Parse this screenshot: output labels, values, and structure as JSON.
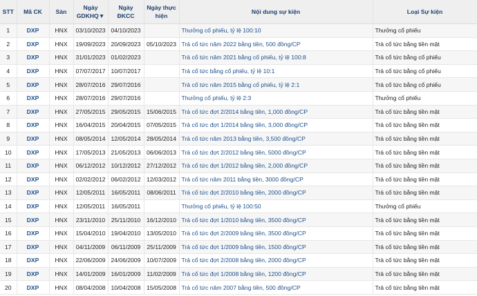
{
  "table": {
    "headers": {
      "stt": "STT",
      "ma_ck": "Mã CK",
      "san": "Sàn",
      "ngay_gdkhq": "Ngày GDKHQ▼",
      "ngay_dkcc": "Ngày ĐKCC",
      "ngay_thuc_hien": "Ngày thực hiện",
      "noi_dung": "Nội dung sự kiện",
      "loai": "Loại Sự kiện"
    },
    "rows": [
      [
        "1",
        "DXP",
        "HNX",
        "03/10/2023",
        "04/10/2023",
        "",
        "Thưởng cổ phiếu, tỷ lệ 100:10",
        "Thưởng cổ phiếu"
      ],
      [
        "2",
        "DXP",
        "HNX",
        "19/09/2023",
        "20/09/2023",
        "05/10/2023",
        "Trả cổ tức năm 2022 bằng tiền, 500 đồng/CP",
        "Trả cổ tức bằng tiền mặt"
      ],
      [
        "3",
        "DXP",
        "HNX",
        "31/01/2023",
        "01/02/2023",
        "",
        "Trả cổ tức năm 2021 bằng cổ phiếu, tỷ lệ 100:8",
        "Trả cổ tức bằng cổ phiếu"
      ],
      [
        "4",
        "DXP",
        "HNX",
        "07/07/2017",
        "10/07/2017",
        "",
        "Trả cổ tức bằng cổ phiếu, tỷ lệ 10:1",
        "Trả cổ tức bằng cổ phiếu"
      ],
      [
        "5",
        "DXP",
        "HNX",
        "28/07/2016",
        "29/07/2016",
        "",
        "Trả cổ tức năm 2015 bằng cổ phiếu, tỷ lệ 2:1",
        "Trả cổ tức bằng cổ phiếu"
      ],
      [
        "6",
        "DXP",
        "HNX",
        "28/07/2016",
        "29/07/2016",
        "",
        "Thưởng cổ phiếu, tỷ lệ 2:3",
        "Thưởng cổ phiếu"
      ],
      [
        "7",
        "DXP",
        "HNX",
        "27/05/2015",
        "29/05/2015",
        "15/06/2015",
        "Trả cổ tức đợt 2/2014 bằng tiền, 1,000 đồng/CP",
        "Trả cổ tức bằng tiền mặt"
      ],
      [
        "8",
        "DXP",
        "HNX",
        "16/04/2015",
        "20/04/2015",
        "07/05/2015",
        "Trả cổ tức đợt 1/2014 bằng tiền, 3,000 đồng/CP",
        "Trả cổ tức bằng tiền mặt"
      ],
      [
        "9",
        "DXP",
        "HNX",
        "08/05/2014",
        "12/05/2014",
        "28/05/2014",
        "Trả cổ tức năm 2013 bằng tiền, 3,500 đồng/CP",
        "Trả cổ tức bằng tiền mặt"
      ],
      [
        "10",
        "DXP",
        "HNX",
        "17/05/2013",
        "21/05/2013",
        "06/06/2013",
        "Trả cổ tức đợt 2/2012 bằng tiền, 5000 đồng/CP",
        "Trả cổ tức bằng tiền mặt"
      ],
      [
        "11",
        "DXP",
        "HNX",
        "06/12/2012",
        "10/12/2012",
        "27/12/2012",
        "Trả cổ tức đợt 1/2012 bằng tiền, 2,000 đồng/CP",
        "Trả cổ tức bằng tiền mặt"
      ],
      [
        "12",
        "DXP",
        "HNX",
        "02/02/2012",
        "06/02/2012",
        "12/03/2012",
        "Trả cổ tức năm 2011 bằng tiền, 3000 đồng/CP",
        "Trả cổ tức bằng tiền mặt"
      ],
      [
        "13",
        "DXP",
        "HNX",
        "12/05/2011",
        "16/05/2011",
        "08/06/2011",
        "Trả cổ tức đợt 2/2010 bằng tiền, 2000 đồng/CP",
        "Trả cổ tức bằng tiền mặt"
      ],
      [
        "14",
        "DXP",
        "HNX",
        "12/05/2011",
        "16/05/2011",
        "",
        "Thưởng cổ phiếu, tỷ lệ 100:50",
        "Thưởng cổ phiếu"
      ],
      [
        "15",
        "DXP",
        "HNX",
        "23/11/2010",
        "25/11/2010",
        "16/12/2010",
        "Trả cổ tức đợt 1/2010 bằng tiền, 3500 đồng/CP",
        "Trả cổ tức bằng tiền mặt"
      ],
      [
        "16",
        "DXP",
        "HNX",
        "15/04/2010",
        "19/04/2010",
        "13/05/2010",
        "Trả cổ tức đợt 2/2009 bằng tiền, 3500 đồng/CP",
        "Trả cổ tức bằng tiền mặt"
      ],
      [
        "17",
        "DXP",
        "HNX",
        "04/11/2009",
        "06/11/2009",
        "25/11/2009",
        "Trả cổ tức đợt 1/2009 bằng tiền, 1500 đồng/CP",
        "Trả cổ tức bằng tiền mặt"
      ],
      [
        "18",
        "DXP",
        "HNX",
        "22/06/2009",
        "24/06/2009",
        "10/07/2009",
        "Trả cổ tức đợt 2/2008 bằng tiền, 2000 đồng/CP",
        "Trả cổ tức bằng tiền mặt"
      ],
      [
        "19",
        "DXP",
        "HNX",
        "14/01/2009",
        "16/01/2009",
        "11/02/2009",
        "Trả cổ tức đợt 1/2008 bằng tiền, 1200 đồng/CP",
        "Trả cổ tức bằng tiền mặt"
      ],
      [
        "20",
        "DXP",
        "HNX",
        "08/04/2008",
        "10/04/2008",
        "15/05/2008",
        "Trả cổ tức năm 2007 bằng tiền, 500 đồng/CP",
        "Trả cổ tức bằng tiền mặt"
      ]
    ]
  },
  "colors": {
    "header_text": "#1f3f6e",
    "link": "#1c4f8c",
    "header_bg": "#efefef",
    "stripe": "#f6f6f6"
  }
}
